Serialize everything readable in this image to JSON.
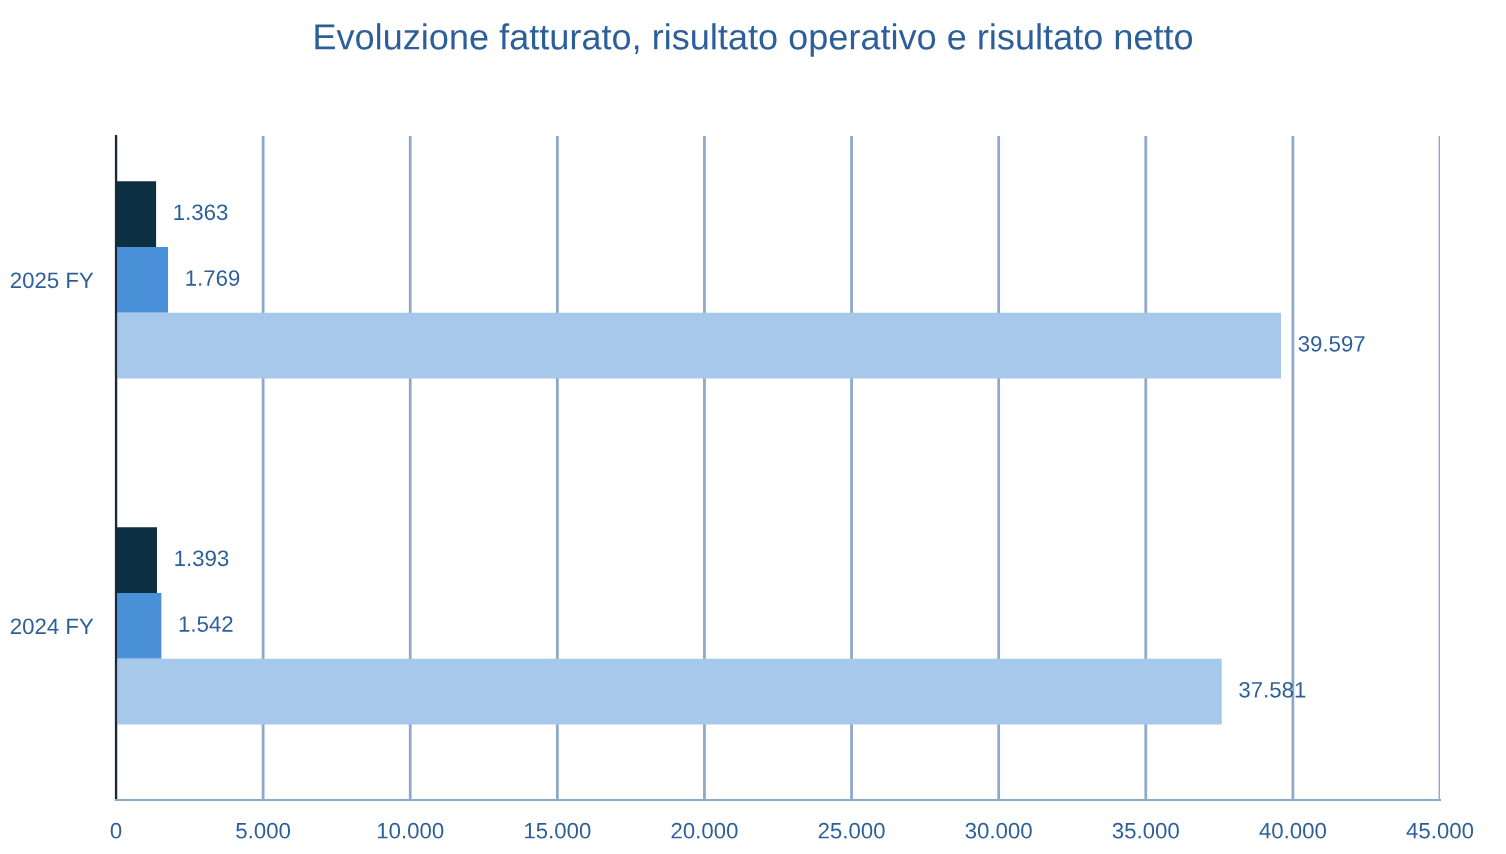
{
  "chart_data": {
    "type": "bar",
    "orientation": "horizontal",
    "title": "Evoluzione fatturato, risultato operativo e risultato netto",
    "categories": [
      "2025 FY",
      "2024 FY"
    ],
    "series": [
      {
        "color": "#0d2f42",
        "values": [
          1363,
          1393
        ],
        "value_labels": [
          "1.363",
          "1.393"
        ]
      },
      {
        "color": "#4a91d9",
        "values": [
          1769,
          1542
        ],
        "value_labels": [
          "1.769",
          "1.542"
        ]
      },
      {
        "color": "#a6c9eb",
        "values": [
          39597,
          37581
        ],
        "value_labels": [
          "39.597",
          "37.581"
        ]
      }
    ],
    "xlim": [
      0,
      45000
    ],
    "xticks": [
      0,
      {
        "value": 5000,
        "label": "5.000"
      },
      {
        "value": 10000,
        "label": "10.000"
      },
      {
        "value": 15000,
        "label": "15.000"
      },
      {
        "value": 20000,
        "label": "20.000"
      },
      {
        "value": 25000,
        "label": "25.000"
      },
      {
        "value": 30000,
        "label": "30.000"
      },
      {
        "value": 35000,
        "label": "35.000"
      },
      {
        "value": 40000,
        "label": "40.000"
      },
      {
        "value": 45000,
        "label": "45.000"
      }
    ],
    "grid": "x",
    "legend": false
  }
}
